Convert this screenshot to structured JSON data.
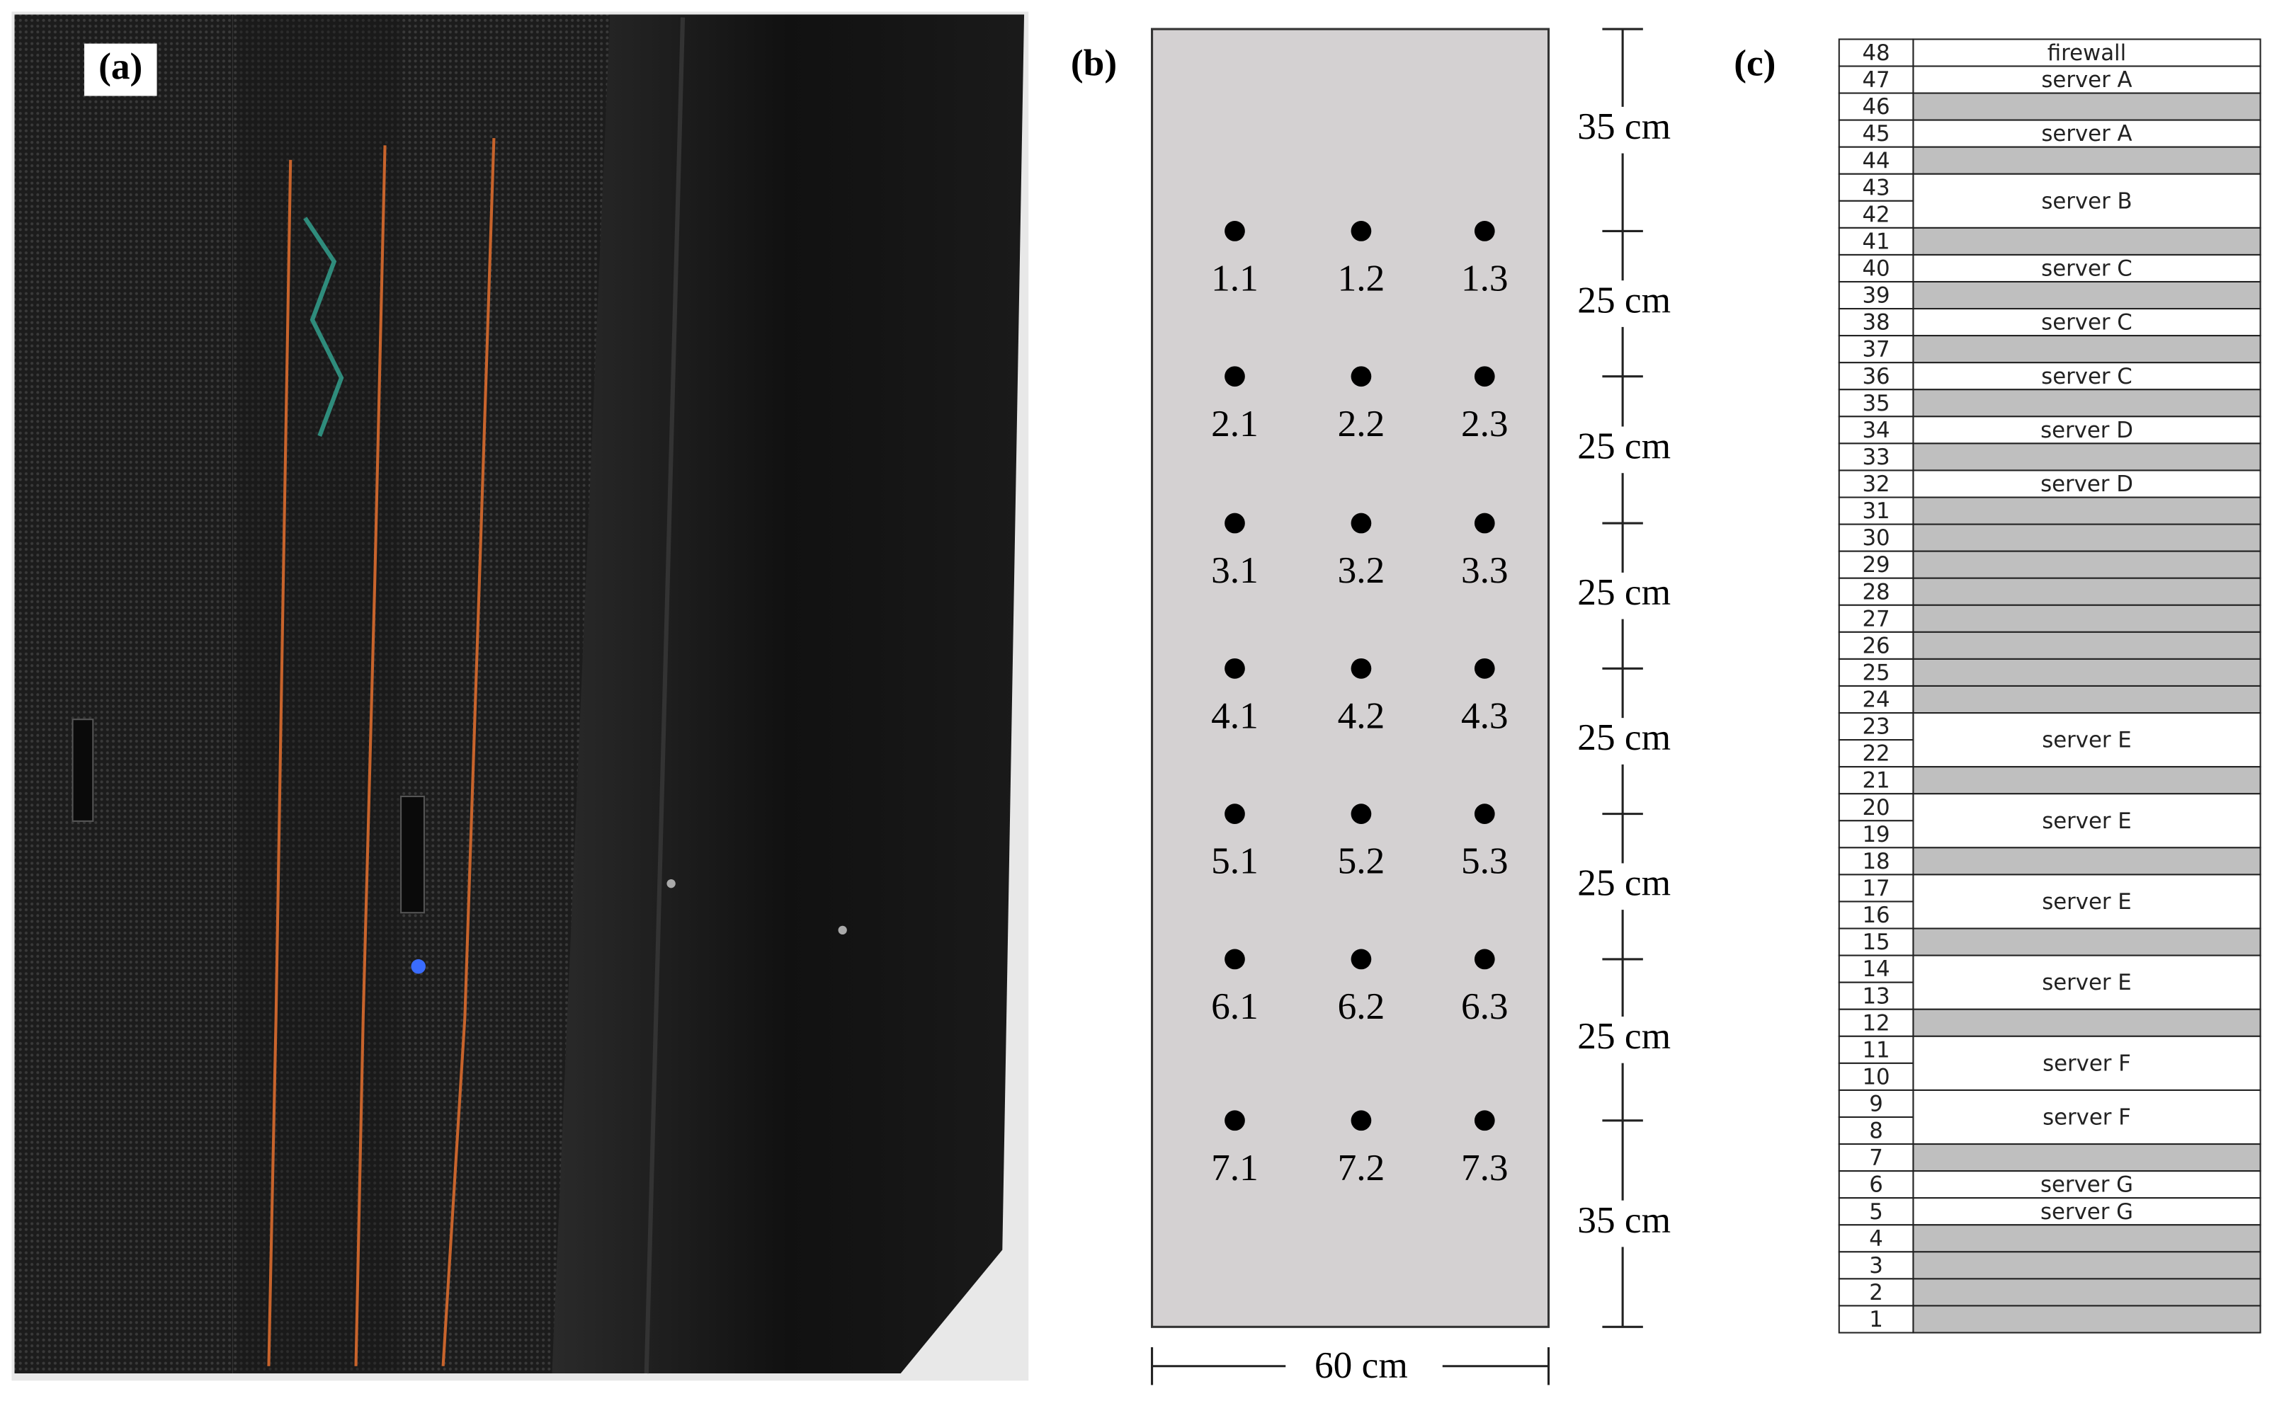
{
  "panel_a": {
    "label": "(a)"
  },
  "panel_b": {
    "label": "(b)",
    "points": [
      [
        "1.1",
        "1.2",
        "1.3"
      ],
      [
        "2.1",
        "2.2",
        "2.3"
      ],
      [
        "3.1",
        "3.2",
        "3.3"
      ],
      [
        "4.1",
        "4.2",
        "4.3"
      ],
      [
        "5.1",
        "5.2",
        "5.3"
      ],
      [
        "6.1",
        "6.2",
        "6.3"
      ],
      [
        "7.1",
        "7.2",
        "7.3"
      ]
    ],
    "vertical_distances": [
      "35 cm",
      "25 cm",
      "25 cm",
      "25 cm",
      "25 cm",
      "25 cm",
      "25 cm",
      "35 cm"
    ],
    "width": "60 cm"
  },
  "panel_c": {
    "label": "(c)",
    "rows": [
      {
        "units": [
          "48"
        ],
        "label": "firewall"
      },
      {
        "units": [
          "47"
        ],
        "label": "server A"
      },
      {
        "units": [
          "46"
        ]
      },
      {
        "units": [
          "45"
        ],
        "label": "server A"
      },
      {
        "units": [
          "44"
        ]
      },
      {
        "units": [
          "43",
          "42"
        ],
        "label": "server B"
      },
      {
        "units": [
          "41"
        ]
      },
      {
        "units": [
          "40"
        ],
        "label": "server C"
      },
      {
        "units": [
          "39"
        ]
      },
      {
        "units": [
          "38"
        ],
        "label": "server C"
      },
      {
        "units": [
          "37"
        ]
      },
      {
        "units": [
          "36"
        ],
        "label": "server C"
      },
      {
        "units": [
          "35"
        ]
      },
      {
        "units": [
          "34"
        ],
        "label": "server D"
      },
      {
        "units": [
          "33"
        ]
      },
      {
        "units": [
          "32"
        ],
        "label": "server D"
      },
      {
        "units": [
          "31"
        ]
      },
      {
        "units": [
          "30"
        ]
      },
      {
        "units": [
          "29"
        ]
      },
      {
        "units": [
          "28"
        ]
      },
      {
        "units": [
          "27"
        ]
      },
      {
        "units": [
          "26"
        ]
      },
      {
        "units": [
          "25"
        ]
      },
      {
        "units": [
          "24"
        ]
      },
      {
        "units": [
          "23",
          "22"
        ],
        "label": "server E"
      },
      {
        "units": [
          "21"
        ]
      },
      {
        "units": [
          "20",
          "19"
        ],
        "label": "server E"
      },
      {
        "units": [
          "18"
        ]
      },
      {
        "units": [
          "17",
          "16"
        ],
        "label": "server E"
      },
      {
        "units": [
          "15"
        ]
      },
      {
        "units": [
          "14",
          "13"
        ],
        "label": "server E"
      },
      {
        "units": [
          "12"
        ]
      },
      {
        "units": [
          "11",
          "10"
        ],
        "label": "server F"
      },
      {
        "units": [
          "9",
          "8"
        ],
        "label": "server F"
      },
      {
        "units": [
          "7"
        ]
      },
      {
        "units": [
          "6"
        ],
        "label": "server G"
      },
      {
        "units": [
          "5"
        ],
        "label": "server G"
      },
      {
        "units": [
          "4"
        ]
      },
      {
        "units": [
          "3"
        ]
      },
      {
        "units": [
          "2"
        ]
      },
      {
        "units": [
          "1"
        ]
      }
    ]
  }
}
